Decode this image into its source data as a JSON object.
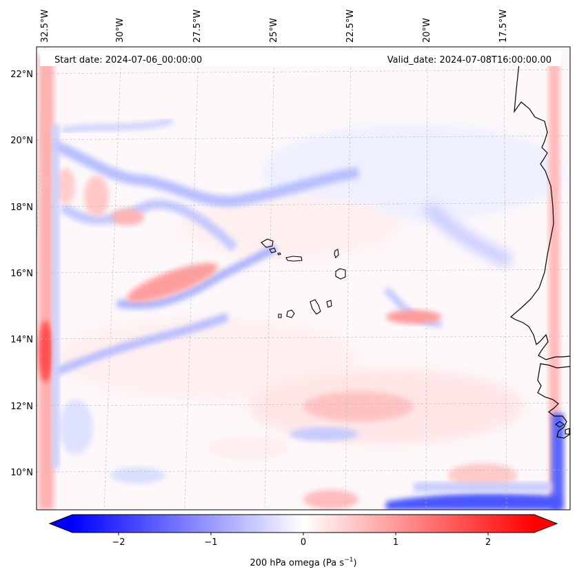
{
  "map": {
    "start_date": "Start date: 2024-07-06_00:00:00",
    "valid_date": "Valid_date: 2024-07-08T16:00:00.00",
    "lon_labels": [
      "32.5°W",
      "30°W",
      "27.5°W",
      "25°W",
      "22.5°W",
      "20°W",
      "17.5°W"
    ],
    "lat_labels": [
      "22°N",
      "20°N",
      "18°N",
      "16°N",
      "14°N",
      "12°N",
      "10°N"
    ],
    "field": "200 hPa omega",
    "unit": "Pa s",
    "unit_exp": "−1"
  },
  "colorbar": {
    "min": -2.5,
    "max": 2.5,
    "ticks": [
      {
        "value": -2,
        "label": "−2"
      },
      {
        "value": -1,
        "label": "−1"
      },
      {
        "value": 0,
        "label": "0"
      },
      {
        "value": 1,
        "label": "1"
      },
      {
        "value": 2,
        "label": "2"
      }
    ],
    "colors": {
      "low": "#0000ff",
      "mid": "#ffffff",
      "high": "#ff0000"
    }
  },
  "colors": {
    "coastline": "#000000",
    "grid": "#bbbbbb"
  }
}
